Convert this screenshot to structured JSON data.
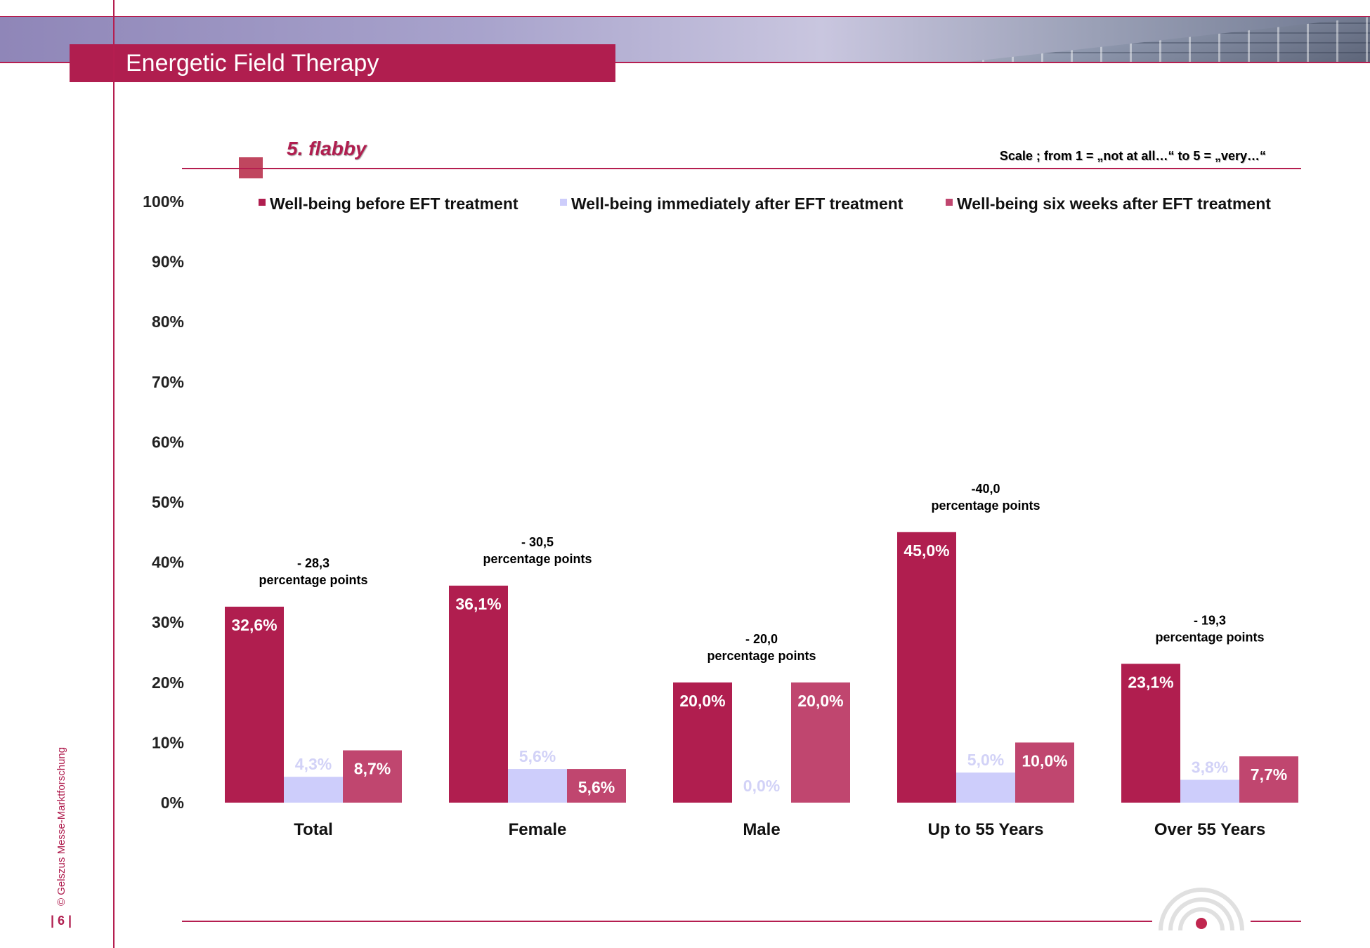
{
  "header": {
    "title": "Energetic Field Therapy"
  },
  "section": {
    "title": "5. flabby",
    "scale_note": "Scale ; from 1 = „not at all…“  to 5 = „very…“"
  },
  "footer": {
    "copyright": "© Gelszus Messe-Marktforschung",
    "page": "| 6 |"
  },
  "chart_data": {
    "type": "bar",
    "categories": [
      "Total",
      "Female",
      "Male",
      "Up to 55 Years",
      "Over 55 Years"
    ],
    "series": [
      {
        "name": "Well-being before EFT treatment",
        "color": "#b01e4f",
        "labels": [
          "32,6%",
          "36,1%",
          "20,0%",
          "45,0%",
          "23,1%"
        ],
        "values": [
          32.6,
          36.1,
          20.0,
          45.0,
          23.1
        ]
      },
      {
        "name": "Well-being immediately after EFT treatment",
        "color": "#cdcdfb",
        "labels": [
          "4,3%",
          "5,6%",
          "0,0%",
          "5,0%",
          "3,8%"
        ],
        "values": [
          4.3,
          5.6,
          0.0,
          5.0,
          3.8
        ]
      },
      {
        "name": "Well-being six weeks after EFT treatment",
        "color": "#c0466f",
        "labels": [
          "8,7%",
          "5,6%",
          "20,0%",
          "10,0%",
          "7,7%"
        ],
        "values": [
          8.7,
          5.6,
          20.0,
          10.0,
          7.7
        ]
      }
    ],
    "annotations": [
      {
        "line1": "- 28,3",
        "line2": "percentage points"
      },
      {
        "line1": "- 30,5",
        "line2": "percentage points"
      },
      {
        "line1": "- 20,0",
        "line2": "percentage points"
      },
      {
        "line1": "-40,0",
        "line2": "percentage points"
      },
      {
        "line1": "- 19,3",
        "line2": "percentage points"
      }
    ],
    "yticks": [
      "0%",
      "10%",
      "20%",
      "30%",
      "40%",
      "50%",
      "60%",
      "70%",
      "80%",
      "90%",
      "100%"
    ],
    "ylim": [
      0,
      100
    ],
    "grid": false,
    "legend_position": "top"
  }
}
